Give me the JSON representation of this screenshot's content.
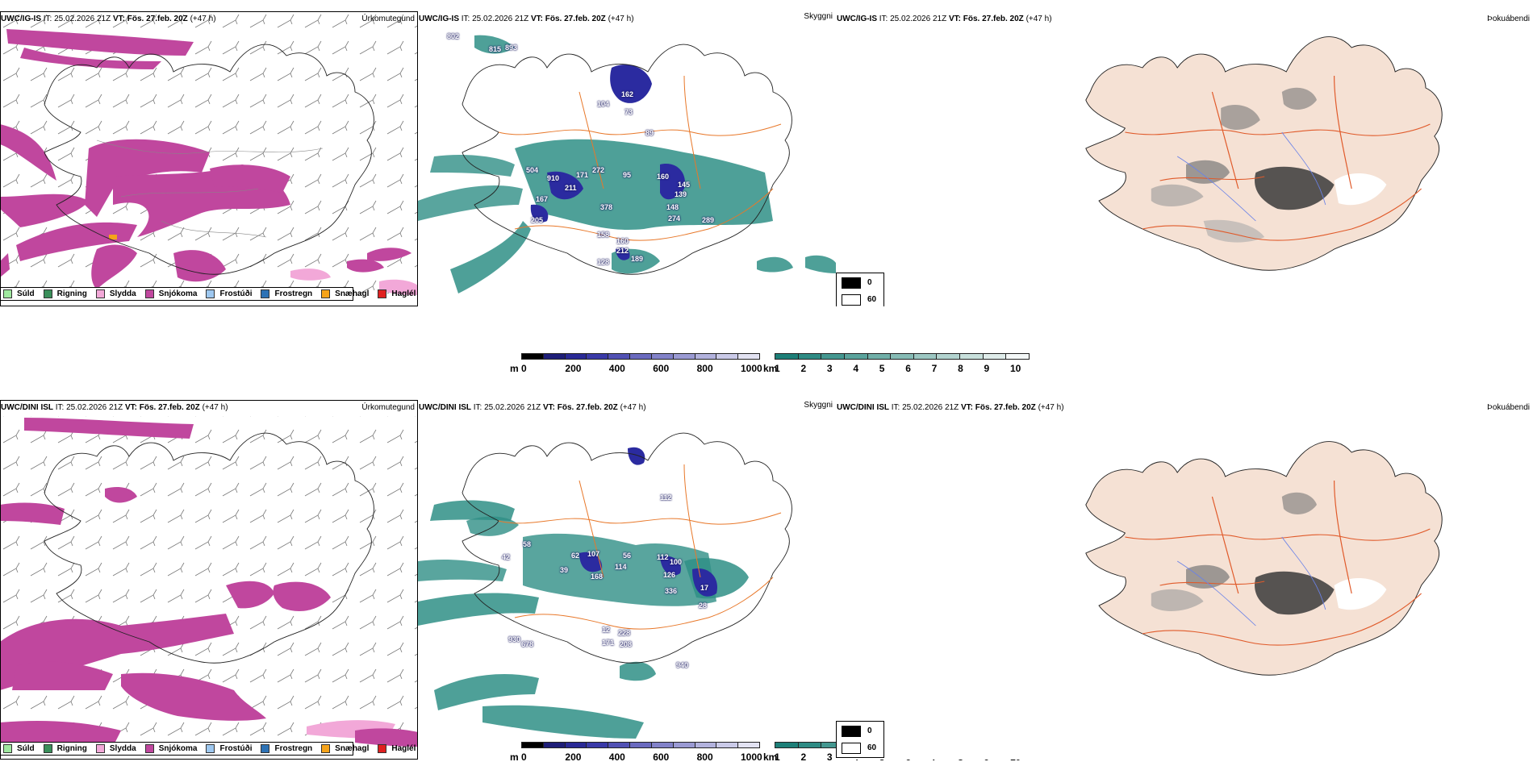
{
  "rows": [
    {
      "model": "UWC/IG-IS",
      "header": {
        "model": "UWC/IG-IS",
        "it_label": "IT:",
        "it_value": "25.02.2026 21Z",
        "vt_label": "VT: Fös. 27.feb. 20Z",
        "lead": "(+47 h)"
      },
      "precip_title": "Úrkomutegund",
      "vis_title": "Skyggni",
      "cloud_title": "Þokuábendi",
      "vis_labels": [
        "802",
        "815",
        "893",
        "162",
        "73",
        "104",
        "89",
        "504",
        "910",
        "171",
        "272",
        "95",
        "160",
        "145",
        "139",
        "211",
        "167",
        "148",
        "274",
        "205",
        "378",
        "289",
        "158",
        "160",
        "212",
        "189",
        "128"
      ]
    },
    {
      "model": "UWC/DINI ISL",
      "header": {
        "model": "UWC/DINI ISL",
        "it_label": "IT:",
        "it_value": "25.02.2026 21Z",
        "vt_label": "VT: Fös. 27.feb. 20Z",
        "lead": "(+47 h)"
      },
      "precip_title": "Úrkomutegund",
      "vis_title": "Skyggni",
      "cloud_title": "Þokuábendi",
      "vis_labels": [
        "112",
        "58",
        "42",
        "62",
        "107",
        "56",
        "112",
        "100",
        "39",
        "168",
        "114",
        "126",
        "336",
        "17",
        "28",
        "12",
        "228",
        "171",
        "208",
        "930",
        "678",
        "940"
      ]
    }
  ],
  "precip_legend": [
    {
      "label": "Súld",
      "color": "#9fe89f"
    },
    {
      "label": "Rigning",
      "color": "#3a8f5a"
    },
    {
      "label": "Slydda",
      "color": "#f2a8d8"
    },
    {
      "label": "Snjókoma",
      "color": "#c0479e"
    },
    {
      "label": "Frostúði",
      "color": "#9ec8f0"
    },
    {
      "label": "Frostregn",
      "color": "#2d72b5"
    },
    {
      "label": "Snæhagl",
      "color": "#f5a31a"
    },
    {
      "label": "Haglél",
      "color": "#e02020"
    }
  ],
  "colorbar_m": {
    "unit": "m",
    "ticks": [
      "0",
      "200",
      "400",
      "600",
      "800",
      "1000"
    ],
    "colors": [
      "#000000",
      "#1e1e78",
      "#2a2a96",
      "#3a3aa8",
      "#5151b4",
      "#6a6abf",
      "#8282c9",
      "#9a9ad3",
      "#b2b2dd",
      "#cacae8",
      "#e2e2f2"
    ]
  },
  "colorbar_km": {
    "unit": "km",
    "ticks": [
      "1",
      "2",
      "3",
      "4",
      "5",
      "6",
      "7",
      "8",
      "9",
      "10"
    ],
    "colors": [
      "#1d7f78",
      "#2e8b84",
      "#449790",
      "#5aa39c",
      "#70afa8",
      "#86bbb5",
      "#9cc7c2",
      "#b2d3cf",
      "#c8e0dc",
      "#dfecea",
      "#f4f8f8"
    ]
  },
  "cloud_legend": {
    "labels": [
      "0",
      "60"
    ]
  },
  "colors": {
    "snow": "#c0479e",
    "sleet": "#f2a8d8",
    "teal": "#2f8f86",
    "navy": "#2b2ba0",
    "roads": "#e8782a",
    "land_beige": "#f5e1d4",
    "rivers": "#6a82e8"
  }
}
